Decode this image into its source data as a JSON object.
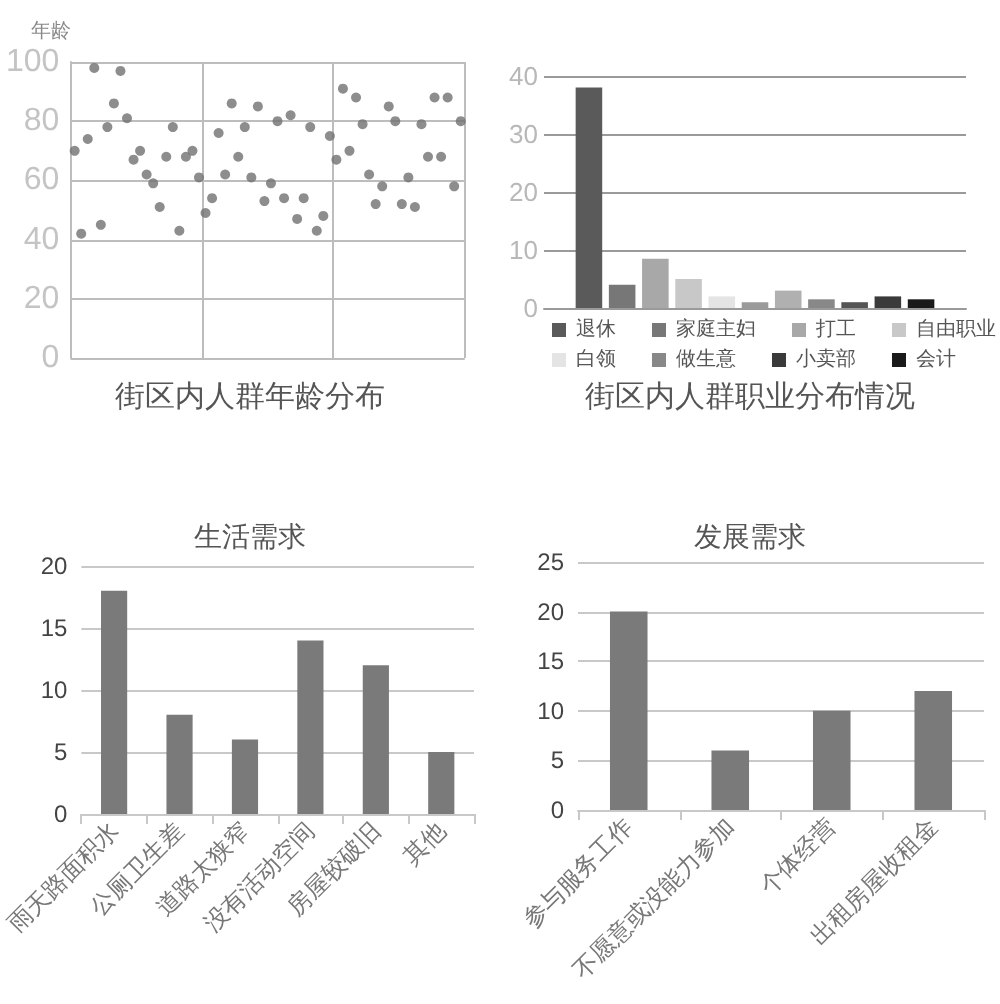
{
  "chart_data": [
    {
      "type": "scatter",
      "title": "街区内人群年龄分布",
      "ylabel": "年龄",
      "categories": [
        null,
        null,
        null,
        null,
        null,
        null,
        null,
        null,
        null,
        null,
        null,
        null,
        null,
        null,
        null,
        null,
        null,
        null,
        null,
        null,
        null,
        null,
        null,
        null,
        null,
        null,
        null,
        null,
        null,
        null,
        null,
        null,
        null,
        null,
        null,
        null,
        null,
        null,
        null,
        null,
        null,
        null,
        null,
        null,
        null,
        null,
        null,
        null,
        null,
        null,
        null,
        null,
        null,
        null,
        null,
        null,
        null,
        null,
        null,
        null
      ],
      "values": [
        70,
        42,
        74,
        98,
        45,
        78,
        86,
        97,
        81,
        67,
        70,
        62,
        59,
        51,
        68,
        78,
        43,
        68,
        70,
        61,
        49,
        54,
        76,
        62,
        86,
        68,
        78,
        61,
        85,
        53,
        59,
        80,
        54,
        82,
        47,
        54,
        78,
        43,
        48,
        75,
        67,
        91,
        70,
        88,
        79,
        62,
        52,
        58,
        85,
        80,
        52,
        61,
        51,
        79,
        68,
        88,
        68,
        88,
        58,
        80
      ],
      "color": "#707070",
      "marker": "circle",
      "ylim": [
        0,
        100
      ],
      "yticks": [
        0,
        20,
        40,
        60,
        80,
        100
      ],
      "grid": true,
      "tick_labels": "y"
    },
    {
      "type": "bar",
      "title": "街区内人群职业分布情况",
      "categories": [
        null
      ],
      "series": [
        {
          "name": "退休",
          "color": "#5a5a5a",
          "values": [
            38
          ]
        },
        {
          "name": "家庭主妇",
          "color": "#777777",
          "values": [
            4
          ]
        },
        {
          "name": "打工",
          "color": "#a8a8a8",
          "values": [
            8.5
          ]
        },
        {
          "name": "自由职业",
          "color": "#c8c8c8",
          "values": [
            5
          ]
        },
        {
          "name": "白领",
          "color": "#e4e4e4",
          "values": [
            2
          ]
        },
        {
          "color": "#9a9a9a",
          "values": [
            1
          ]
        },
        {
          "color": "#b0b0b0",
          "values": [
            3
          ]
        },
        {
          "name": "做生意",
          "color": "#888888",
          "values": [
            1.5
          ]
        },
        {
          "color": "#555555",
          "values": [
            1
          ]
        },
        {
          "name": "小卖部",
          "color": "#3a3a3a",
          "values": [
            2
          ]
        },
        {
          "name": "会计",
          "color": "#1a1a1a",
          "values": [
            1.5
          ]
        }
      ],
      "ylim": [
        0,
        40
      ],
      "yticks": [
        0,
        10,
        20,
        30,
        40
      ],
      "grid": "y",
      "legend": "bottom",
      "tick_labels": "y"
    },
    {
      "type": "bar",
      "title": "生活需求",
      "categories": [
        "雨天路面积水",
        "公厕卫生差",
        "道路太狭窄",
        "没有活动空间",
        "房屋较破旧",
        "其他"
      ],
      "values": [
        18,
        8,
        6,
        14,
        12,
        5
      ],
      "color": "#7a7a7a",
      "ylim": [
        0,
        20
      ],
      "yticks": [
        0,
        5,
        10,
        15,
        20
      ],
      "grid": "y"
    },
    {
      "type": "bar",
      "title": "发展需求",
      "categories": [
        "参与服务工作",
        "不愿意或没能力参加",
        "个体经营",
        "出租房屋收租金"
      ],
      "values": [
        20,
        6,
        10,
        12
      ],
      "color": "#7a7a7a",
      "ylim": [
        0,
        25
      ],
      "yticks": [
        0,
        5,
        10,
        15,
        20,
        25
      ],
      "grid": "y"
    }
  ]
}
